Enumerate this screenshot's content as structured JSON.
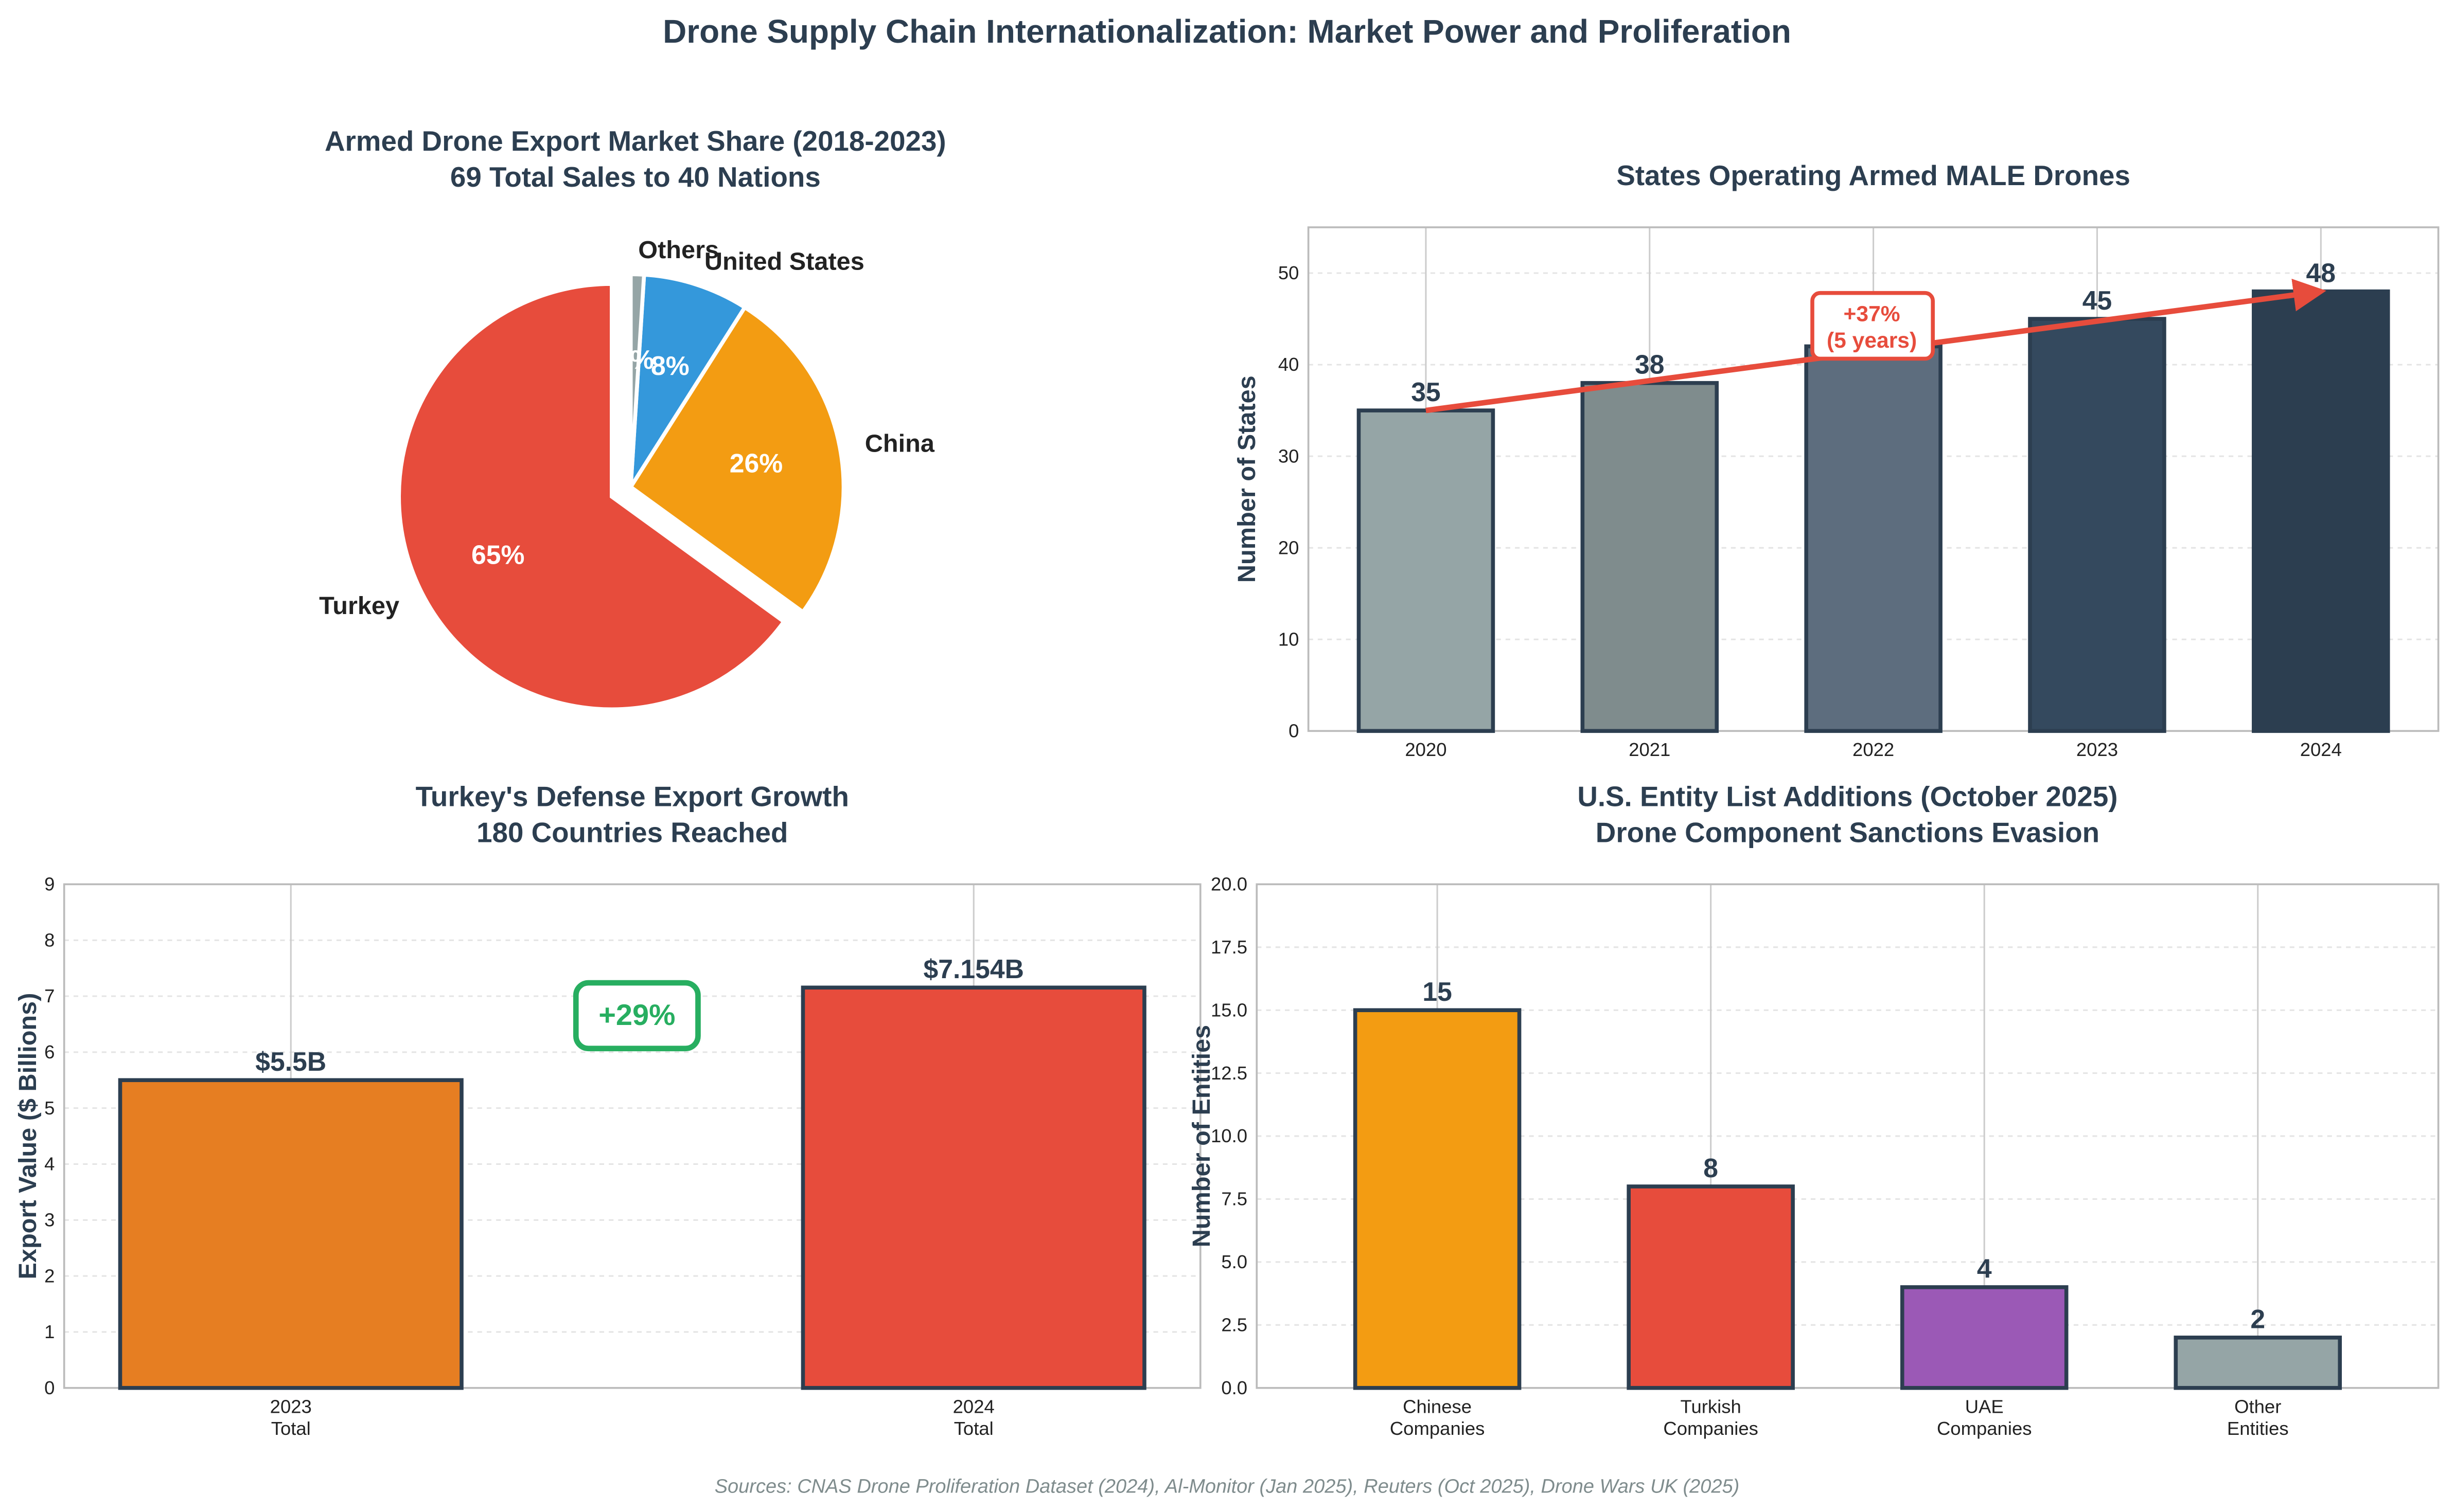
{
  "title": "Drone Supply Chain Internationalization: Market Power and Proliferation",
  "source": "Sources: CNAS Drone Proliferation Dataset (2024), Al-Monitor (Jan 2025), Reuters (Oct 2025), Drone Wars UK (2025)",
  "chart_data": [
    {
      "type": "pie",
      "title": "Armed Drone Export Market Share (2018-2023)",
      "subtitle": "69 Total Sales to 40 Nations",
      "labels": [
        "Turkey",
        "China",
        "United States",
        "Others"
      ],
      "values": [
        65,
        26,
        8,
        1
      ],
      "pct_labels": [
        "65%",
        "26%",
        "8%",
        "1%"
      ],
      "colors": [
        "#e74c3c",
        "#f39c12",
        "#3498db",
        "#95a5a6"
      ],
      "exploded": "Turkey"
    },
    {
      "type": "bar",
      "title": "States Operating Armed MALE Drones",
      "ylabel": "Number of States",
      "categories": [
        "2020",
        "2021",
        "2022",
        "2023",
        "2024"
      ],
      "values": [
        35,
        38,
        42,
        45,
        48
      ],
      "value_labels": [
        "35",
        "38",
        "",
        "45",
        "48"
      ],
      "colors": [
        "#95a5a6",
        "#7f8c8d",
        "#5d6d7e",
        "#34495e",
        "#2c3e50"
      ],
      "ylim": [
        0,
        55
      ],
      "yticks": [
        "0",
        "10",
        "20",
        "30",
        "40",
        "50"
      ],
      "annotation": {
        "line1": "+37%",
        "line2": "(5 years)",
        "color": "#e74c3c"
      }
    },
    {
      "type": "bar",
      "title": "Turkey's Defense Export Growth",
      "subtitle": "180 Countries Reached",
      "ylabel": "Export Value ($ Billions)",
      "categories": [
        [
          "2023",
          "Total"
        ],
        [
          "2024",
          "Total"
        ]
      ],
      "values": [
        5.5,
        7.154
      ],
      "value_labels": [
        "$5.5B",
        "$7.154B"
      ],
      "colors": [
        "#e67e22",
        "#e74c3c"
      ],
      "ylim": [
        0,
        9
      ],
      "yticks": [
        "0",
        "1",
        "2",
        "3",
        "4",
        "5",
        "6",
        "7",
        "8",
        "9"
      ],
      "annotation": {
        "text": "+29%",
        "color": "#27ae60"
      }
    },
    {
      "type": "bar",
      "title": "U.S. Entity List Additions (October 2025)",
      "subtitle": "Drone Component Sanctions Evasion",
      "ylabel": "Number of Entities",
      "categories": [
        [
          "Chinese",
          "Companies"
        ],
        [
          "Turkish",
          "Companies"
        ],
        [
          "UAE",
          "Companies"
        ],
        [
          "Other",
          "Entities"
        ]
      ],
      "values": [
        15,
        8,
        4,
        2
      ],
      "value_labels": [
        "15",
        "8",
        "4",
        "2"
      ],
      "colors": [
        "#f39c12",
        "#e74c3c",
        "#9b59b6",
        "#95a5a6"
      ],
      "ylim": [
        0,
        20
      ],
      "yticks": [
        "0.0",
        "2.5",
        "5.0",
        "7.5",
        "10.0",
        "12.5",
        "15.0",
        "17.5",
        "20.0"
      ]
    }
  ]
}
